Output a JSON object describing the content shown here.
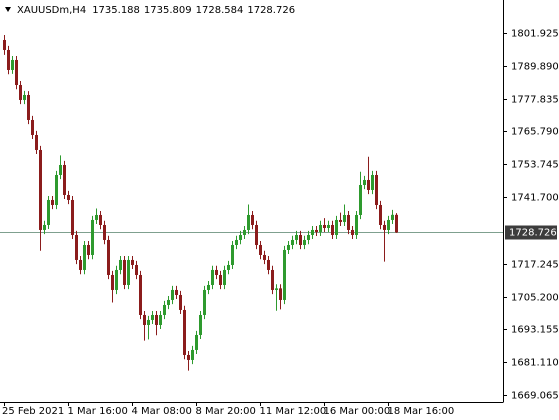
{
  "chart_data": {
    "type": "candlestick",
    "symbol": "XAUUSDm,H4",
    "categories": [
      "25 Feb 2021",
      null,
      null,
      null,
      null,
      null,
      null,
      null,
      null,
      null,
      null,
      null,
      null,
      null,
      null,
      null,
      "1 Mar 16:00",
      null,
      null,
      null,
      null,
      null,
      null,
      null,
      null,
      null,
      null,
      null,
      null,
      null,
      null,
      null,
      "4 Mar 08:00",
      null,
      null,
      null,
      null,
      null,
      null,
      null,
      null,
      null,
      null,
      null,
      null,
      null,
      null,
      null,
      "8 Mar 20:00",
      null,
      null,
      null,
      null,
      null,
      null,
      null,
      null,
      null,
      null,
      null,
      null,
      null,
      null,
      null,
      "11 Mar 12:00",
      null,
      null,
      null,
      null,
      null,
      null,
      null,
      null,
      null,
      null,
      null,
      null,
      null,
      null,
      null,
      "16 Mar 00:00",
      null,
      null,
      null,
      null,
      null,
      null,
      null,
      null,
      null,
      null,
      null,
      null,
      null,
      null,
      null,
      "18 Mar 16:00",
      null,
      null
    ],
    "open": [
      1799.36,
      1795.69,
      1788.35,
      1792.02,
      1782.84,
      1777.34,
      1779.17,
      1770.0,
      1764.49,
      1758.99,
      1729.63,
      1731.46,
      1740.64,
      1738.8,
      1749.81,
      1753.48,
      1742.47,
      1740.64,
      1727.79,
      1718.62,
      1714.95,
      1724.12,
      1720.45,
      1733.3,
      1735.13,
      1731.46,
      1725.96,
      1713.11,
      1707.61,
      1714.95,
      1718.62,
      1709.44,
      1718.62,
      1716.78,
      1713.11,
      1698.43,
      1694.76,
      1696.6,
      1698.43,
      1694.76,
      1698.43,
      1702.1,
      1703.94,
      1707.61,
      1705.77,
      1700.27,
      1683.75,
      1681.92,
      1685.59,
      1691.09,
      1698.43,
      1707.61,
      1709.44,
      1714.95,
      1713.11,
      1709.44,
      1714.95,
      1716.78,
      1724.12,
      1725.96,
      1727.79,
      1729.63,
      1735.13,
      1731.46,
      1724.12,
      1720.45,
      1718.62,
      1714.95,
      1707.61,
      1708.2,
      1703.94,
      1722.29,
      1724.12,
      1725.96,
      1727.79,
      1724.12,
      1725.96,
      1727.79,
      1729.63,
      1728.9,
      1731.46,
      1730.36,
      1731.46,
      1727.79,
      1733.3,
      1732.57,
      1735.13,
      1729.63,
      1727.79,
      1735.13,
      1746.14,
      1747.98,
      1744.31,
      1749.81,
      1738.8,
      1731.46,
      1729.63,
      1733.3,
      1735.188
    ],
    "high": [
      1801.2,
      1797.2,
      1793.5,
      1793.5,
      1784.3,
      1780.7,
      1780.6,
      1771.5,
      1766.0,
      1760.5,
      1733.0,
      1742.1,
      1742.1,
      1751.3,
      1757.0,
      1755.0,
      1744.0,
      1742.1,
      1729.3,
      1720.1,
      1725.6,
      1725.6,
      1734.8,
      1737.5,
      1736.6,
      1733.0,
      1727.5,
      1714.6,
      1716.5,
      1720.1,
      1720.1,
      1720.1,
      1720.1,
      1718.3,
      1714.6,
      1699.9,
      1698.1,
      1699.9,
      1699.9,
      1699.9,
      1703.6,
      1705.4,
      1709.1,
      1709.1,
      1707.3,
      1701.8,
      1685.2,
      1687.1,
      1692.6,
      1699.9,
      1709.1,
      1710.9,
      1716.5,
      1716.5,
      1714.6,
      1716.5,
      1718.3,
      1725.6,
      1727.5,
      1729.3,
      1731.1,
      1739.0,
      1736.6,
      1733.0,
      1725.6,
      1722.0,
      1720.1,
      1716.5,
      1709.7,
      1709.7,
      1723.8,
      1725.6,
      1727.5,
      1729.3,
      1729.3,
      1727.5,
      1729.3,
      1731.1,
      1731.1,
      1733.0,
      1734.0,
      1733.0,
      1733.0,
      1734.8,
      1736.0,
      1739.0,
      1736.6,
      1731.1,
      1736.6,
      1751.0,
      1749.5,
      1756.5,
      1751.3,
      1751.3,
      1740.3,
      1733.0,
      1734.8,
      1737.0,
      1735.809
    ],
    "low": [
      1793.9,
      1786.8,
      1786.9,
      1781.3,
      1775.8,
      1775.8,
      1768.5,
      1763.0,
      1757.5,
      1722.0,
      1728.1,
      1730.0,
      1737.3,
      1737.3,
      1748.3,
      1741.0,
      1739.1,
      1726.3,
      1717.1,
      1713.4,
      1713.4,
      1718.9,
      1718.9,
      1731.8,
      1729.9,
      1724.4,
      1711.6,
      1703.0,
      1706.1,
      1713.4,
      1707.9,
      1707.9,
      1715.3,
      1711.6,
      1696.9,
      1689.0,
      1689.5,
      1695.1,
      1691.0,
      1693.3,
      1696.9,
      1700.6,
      1702.4,
      1704.3,
      1698.8,
      1682.2,
      1678.0,
      1680.4,
      1684.1,
      1689.6,
      1696.9,
      1706.1,
      1707.9,
      1711.6,
      1707.9,
      1707.9,
      1713.4,
      1715.3,
      1722.6,
      1724.4,
      1726.3,
      1728.1,
      1729.9,
      1722.6,
      1718.9,
      1717.1,
      1713.4,
      1706.1,
      1700.0,
      1700.5,
      1702.4,
      1720.8,
      1722.6,
      1724.4,
      1722.6,
      1722.6,
      1724.4,
      1726.3,
      1727.4,
      1727.4,
      1728.9,
      1728.9,
      1726.3,
      1726.3,
      1731.1,
      1731.1,
      1728.1,
      1726.3,
      1726.3,
      1733.6,
      1744.6,
      1742.8,
      1742.8,
      1737.3,
      1729.9,
      1718.0,
      1728.1,
      1731.8,
      1728.584
    ],
    "close": [
      1795.69,
      1788.35,
      1792.02,
      1782.84,
      1777.34,
      1779.17,
      1770.0,
      1764.49,
      1758.99,
      1729.63,
      1731.46,
      1740.64,
      1738.8,
      1749.81,
      1753.48,
      1742.47,
      1740.64,
      1727.79,
      1718.62,
      1714.95,
      1724.12,
      1720.45,
      1733.3,
      1735.13,
      1731.46,
      1725.96,
      1713.11,
      1707.61,
      1714.95,
      1718.62,
      1709.44,
      1718.62,
      1716.78,
      1713.11,
      1698.43,
      1694.76,
      1696.6,
      1698.43,
      1694.76,
      1698.43,
      1702.1,
      1703.94,
      1707.61,
      1705.77,
      1700.27,
      1683.75,
      1681.92,
      1685.59,
      1691.09,
      1698.43,
      1707.61,
      1709.44,
      1714.95,
      1713.11,
      1709.44,
      1714.95,
      1716.78,
      1724.12,
      1725.96,
      1727.79,
      1729.63,
      1735.13,
      1731.46,
      1724.12,
      1720.45,
      1718.62,
      1714.95,
      1707.61,
      1708.2,
      1703.94,
      1722.29,
      1724.12,
      1725.96,
      1727.79,
      1724.12,
      1725.96,
      1727.79,
      1729.63,
      1728.9,
      1731.46,
      1730.36,
      1731.46,
      1727.79,
      1733.3,
      1732.57,
      1735.13,
      1729.63,
      1727.79,
      1735.13,
      1746.14,
      1747.98,
      1744.31,
      1749.81,
      1738.8,
      1731.46,
      1729.63,
      1733.3,
      1735.188,
      1728.726
    ],
    "up_color": "#2e9a2e",
    "down_color": "#8b1c1c",
    "price_line_color": "#7fa08f",
    "ylim": [
      1666.86,
      1813.3
    ],
    "yticks": [
      1669.065,
      {
        "value": 1681.11,
        "label": "1681.110"
      },
      1693.155,
      {
        "value": 1705.2,
        "label": "1705.200"
      },
      1717.245,
      {
        "value": 1741.7,
        "label": "1741.700"
      },
      1753.745,
      {
        "value": 1765.79,
        "label": "1765.790"
      },
      1777.835,
      {
        "value": 1789.89,
        "label": "1789.890"
      },
      1801.925
    ]
  }
}
